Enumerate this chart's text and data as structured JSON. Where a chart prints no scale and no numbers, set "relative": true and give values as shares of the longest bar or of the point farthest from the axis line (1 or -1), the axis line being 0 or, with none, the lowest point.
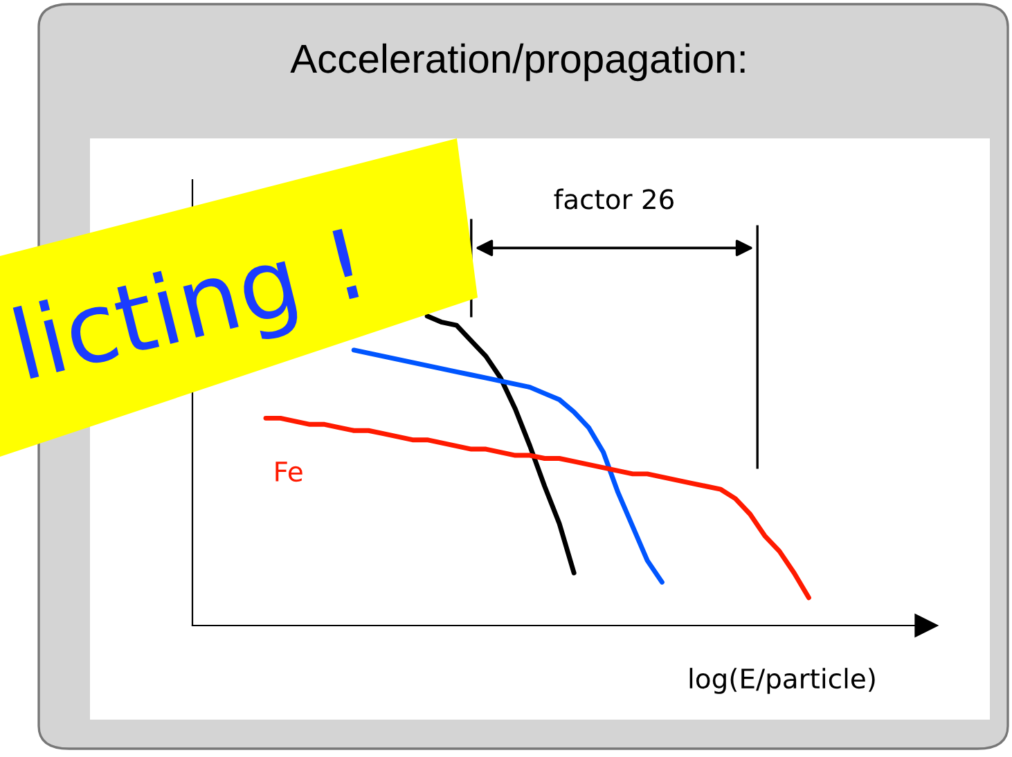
{
  "chart_data": {
    "type": "line",
    "relative": true,
    "title": "Acceleration/propagation:",
    "xlabel": "log(E/particle)",
    "annotations": [
      "factor 26",
      "licting !"
    ],
    "categories": [
      null,
      null,
      null,
      null,
      null,
      null,
      null,
      null,
      null,
      null,
      null,
      null,
      null,
      null,
      null,
      null,
      null,
      null,
      null,
      null,
      null,
      null,
      null,
      null,
      null,
      null,
      null,
      null,
      null,
      null,
      null,
      null,
      null,
      null,
      null,
      null,
      null,
      null
    ],
    "series": [
      {
        "color": "#000000",
        "values": [
          null,
          null,
          null,
          null,
          null,
          null,
          null,
          null,
          null,
          null,
          null,
          1.0,
          0.98,
          0.97,
          0.92,
          0.87,
          0.8,
          0.7,
          0.58,
          0.45,
          0.33,
          0.17,
          null,
          null,
          null,
          null,
          null,
          null,
          null,
          null,
          null,
          null,
          null,
          null,
          null,
          null,
          null,
          null
        ]
      },
      {
        "color": "#0055ff",
        "values": [
          null,
          null,
          null,
          null,
          null,
          null,
          0.89,
          0.88,
          0.87,
          0.86,
          0.85,
          0.84,
          0.83,
          0.82,
          0.81,
          0.8,
          0.79,
          0.78,
          0.77,
          0.75,
          0.73,
          0.69,
          0.64,
          0.56,
          0.43,
          0.32,
          0.21,
          0.14,
          null,
          null,
          null,
          null,
          null,
          null,
          null,
          null,
          null,
          null
        ]
      },
      {
        "name": "Fe",
        "color": "#ff1a00",
        "values": [
          0.67,
          0.67,
          0.66,
          0.65,
          0.65,
          0.64,
          0.63,
          0.63,
          0.62,
          0.61,
          0.6,
          0.6,
          0.59,
          0.58,
          0.57,
          0.57,
          0.56,
          0.55,
          0.55,
          0.54,
          0.54,
          0.53,
          0.52,
          0.51,
          0.5,
          0.49,
          0.49,
          0.48,
          0.47,
          0.46,
          0.45,
          0.44,
          0.41,
          0.36,
          0.29,
          0.24,
          0.17,
          0.09
        ]
      }
    ]
  }
}
